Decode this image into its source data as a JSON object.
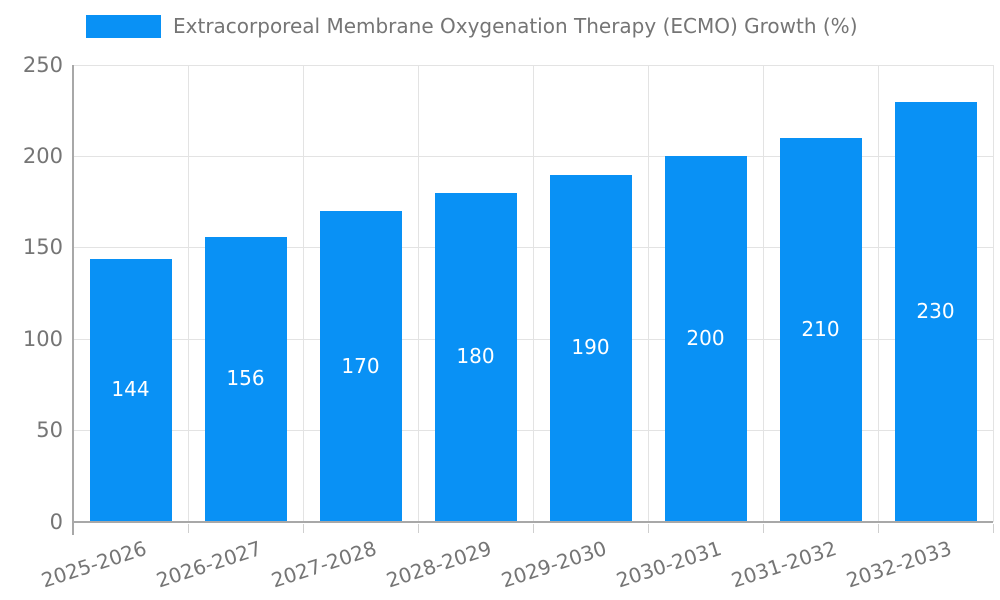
{
  "legend": {
    "label": "Extracorporeal Membrane Oxygenation Therapy (ECMO) Growth (%)"
  },
  "chart_data": {
    "type": "bar",
    "title": "",
    "series_name": "Extracorporeal Membrane Oxygenation Therapy (ECMO) Growth (%)",
    "categories": [
      "2025-2026",
      "2026-2027",
      "2027-2028",
      "2028-2029",
      "2029-2030",
      "2030-2031",
      "2031-2032",
      "2032-2033"
    ],
    "values": [
      144,
      156,
      170,
      180,
      190,
      200,
      210,
      230
    ],
    "xlabel": "",
    "ylabel": "",
    "ylim": [
      0,
      250
    ],
    "ytick_step": 50,
    "yticks": [
      0,
      50,
      100,
      150,
      200,
      250
    ],
    "grid": true,
    "legend_position": "top-left",
    "value_labels": "inside-center",
    "colors": {
      "bar": "#0991f5",
      "value_label": "#ffffff",
      "axis_text": "#757575",
      "gridline": "#e3e3e3",
      "axis_line": "#a8a8a8"
    }
  }
}
